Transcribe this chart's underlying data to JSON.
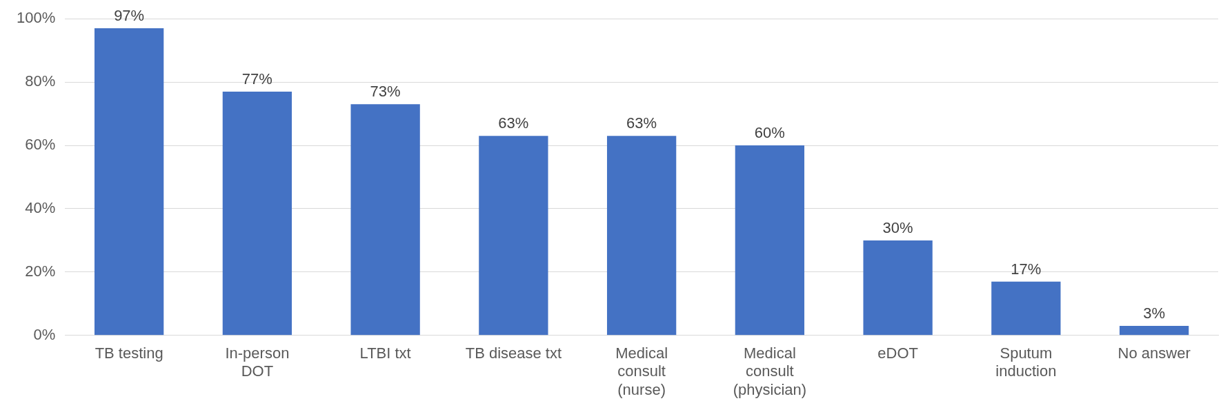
{
  "chart_data": {
    "type": "bar",
    "categories": [
      "TB testing",
      "In-person\nDOT",
      "LTBI txt",
      "TB disease txt",
      "Medical\nconsult\n(nurse)",
      "Medical\nconsult\n(physician)",
      "eDOT",
      "Sputum\ninduction",
      "No answer"
    ],
    "values": [
      97,
      77,
      73,
      63,
      63,
      60,
      30,
      17,
      3
    ],
    "color": "#4472c4",
    "value_labels": [
      "97%",
      "77%",
      "73%",
      "63%",
      "63%",
      "60%",
      "30%",
      "17%",
      "3%"
    ],
    "ylim": [
      0,
      100
    ],
    "yticks": [
      {
        "value": 0,
        "label": "0%"
      },
      {
        "value": 20,
        "label": "20%"
      },
      {
        "value": 40,
        "label": "40%"
      },
      {
        "value": 60,
        "label": "60%"
      },
      {
        "value": 80,
        "label": "80%"
      },
      {
        "value": 100,
        "label": "100%"
      }
    ],
    "grid": "y"
  }
}
